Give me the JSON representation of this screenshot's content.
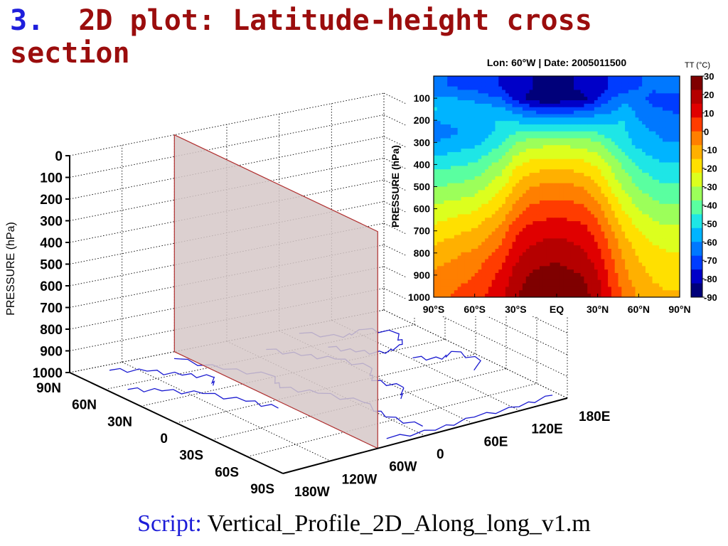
{
  "slide": {
    "number": "3.",
    "title": "2D plot: Latitude-height cross section",
    "script_label": "Script:",
    "script_name": "Vertical_Profile_2D_Along_long_v1.m"
  },
  "colors": {
    "title_number": "#1f1fdc",
    "title_text": "#9b0d0d",
    "coastline": "#1a1ad0",
    "plane_fill": "#d6c8c8",
    "plane_edge": "#b03030"
  },
  "chart_data": [
    {
      "type": "3d-surface-plane",
      "zlabel": "PRESSURE (hPa)",
      "z_ticks": [
        "0",
        "100",
        "200",
        "300",
        "400",
        "500",
        "600",
        "700",
        "800",
        "900",
        "1000"
      ],
      "lat_ticks": [
        "90N",
        "60N",
        "30N",
        "0",
        "30S",
        "60S",
        "90S"
      ],
      "lon_ticks": [
        "180W",
        "120W",
        "60W",
        "0",
        "60E",
        "120E",
        "180E"
      ],
      "plane": {
        "longitude": "60W",
        "pressure_range": [
          0,
          1000
        ]
      },
      "basemap": "world-coastlines",
      "grid": true
    },
    {
      "type": "heatmap",
      "title": "Lon: 60°W | Date: 2005011500",
      "ylabel": "PRESSURE (hPa)",
      "x_ticks": [
        "90°S",
        "60°S",
        "30°S",
        "EQ",
        "30°N",
        "60°N",
        "90°N"
      ],
      "y_ticks": [
        "100",
        "200",
        "300",
        "400",
        "500",
        "600",
        "700",
        "800",
        "900",
        "1000"
      ],
      "ylim": [
        1000,
        0
      ],
      "xlim": [
        -90,
        90
      ],
      "colorbar": {
        "title": "TT (°C)",
        "ticks": [
          "30",
          "20",
          "10",
          "0",
          "-10",
          "-20",
          "-30",
          "-40",
          "-50",
          "-60",
          "-70",
          "-80",
          "-90"
        ],
        "range": [
          -90,
          30
        ],
        "colors": [
          "#7f0000",
          "#b50000",
          "#e00000",
          "#ff3c00",
          "#ff7f00",
          "#ffb000",
          "#ffe000",
          "#dcff1e",
          "#9cff5a",
          "#5affa0",
          "#1ee6e6",
          "#00b4ff",
          "#0078ff",
          "#003cff",
          "#0000c8",
          "#00007a"
        ]
      },
      "levels": [
        {
          "p": 50,
          "lat": [
            -90,
            -60,
            -40,
            -30,
            -20,
            -10,
            0,
            10,
            20,
            30,
            40,
            50,
            60,
            70,
            80,
            90
          ],
          "t": [
            -66,
            -70,
            -76,
            -80,
            -82,
            -84,
            -84,
            -83,
            -80,
            -78,
            -74,
            -72,
            -68,
            -66,
            -64,
            -62
          ]
        },
        {
          "p": 100,
          "lat": [
            -90,
            -60,
            -40,
            -30,
            -20,
            -10,
            0,
            10,
            20,
            30,
            40,
            50,
            60,
            70,
            80,
            90
          ],
          "t": [
            -58,
            -62,
            -68,
            -78,
            -84,
            -88,
            -88,
            -86,
            -84,
            -76,
            -68,
            -62,
            -64,
            -70,
            -72,
            -74
          ]
        },
        {
          "p": 150,
          "lat": [
            -90,
            -60,
            -40,
            -30,
            -20,
            -10,
            0,
            10,
            20,
            30,
            40,
            50,
            60,
            70,
            80,
            90
          ],
          "t": [
            -52,
            -56,
            -58,
            -64,
            -70,
            -74,
            -74,
            -72,
            -70,
            -66,
            -62,
            -58,
            -62,
            -66,
            -68,
            -70
          ]
        },
        {
          "p": 200,
          "lat": [
            -90,
            -60,
            -40,
            -30,
            -20,
            -10,
            0,
            10,
            20,
            30,
            40,
            50,
            60,
            70,
            80,
            90
          ],
          "t": [
            -60,
            -55,
            -52,
            -54,
            -56,
            -58,
            -58,
            -57,
            -56,
            -55,
            -54,
            -52,
            -60,
            -62,
            -64,
            -64
          ]
        },
        {
          "p": 250,
          "lat": [
            -90,
            -60,
            -40,
            -30,
            -20,
            -10,
            0,
            10,
            20,
            30,
            40,
            50,
            60,
            70,
            80,
            90
          ],
          "t": [
            -64,
            -58,
            -50,
            -46,
            -44,
            -44,
            -44,
            -44,
            -44,
            -46,
            -50,
            -52,
            -58,
            -60,
            -62,
            -62
          ]
        },
        {
          "p": 300,
          "lat": [
            -90,
            -60,
            -40,
            -30,
            -20,
            -10,
            0,
            10,
            20,
            30,
            40,
            50,
            60,
            70,
            80,
            90
          ],
          "t": [
            -60,
            -55,
            -46,
            -38,
            -34,
            -33,
            -33,
            -33,
            -34,
            -37,
            -44,
            -50,
            -55,
            -58,
            -60,
            -60
          ]
        },
        {
          "p": 400,
          "lat": [
            -90,
            -60,
            -40,
            -30,
            -20,
            -10,
            0,
            10,
            20,
            30,
            40,
            50,
            60,
            70,
            80,
            90
          ],
          "t": [
            -48,
            -44,
            -34,
            -24,
            -20,
            -18,
            -18,
            -18,
            -20,
            -24,
            -32,
            -40,
            -46,
            -50,
            -52,
            -52
          ]
        },
        {
          "p": 500,
          "lat": [
            -90,
            -60,
            -40,
            -30,
            -20,
            -10,
            0,
            10,
            20,
            30,
            40,
            50,
            60,
            70,
            80,
            90
          ],
          "t": [
            -38,
            -34,
            -24,
            -14,
            -8,
            -6,
            -6,
            -6,
            -8,
            -14,
            -24,
            -32,
            -38,
            -42,
            -44,
            -44
          ]
        },
        {
          "p": 600,
          "lat": [
            -90,
            -60,
            -40,
            -30,
            -20,
            -10,
            0,
            10,
            20,
            30,
            40,
            50,
            60,
            70,
            80,
            90
          ],
          "t": [
            -28,
            -24,
            -14,
            -4,
            2,
            3,
            4,
            3,
            2,
            -4,
            -14,
            -24,
            -30,
            -34,
            -36,
            -36
          ]
        },
        {
          "p": 700,
          "lat": [
            -90,
            -60,
            -40,
            -30,
            -20,
            -10,
            0,
            10,
            20,
            30,
            40,
            50,
            60,
            70,
            80,
            90
          ],
          "t": [
            -20,
            -14,
            -4,
            6,
            10,
            12,
            13,
            12,
            10,
            4,
            -6,
            -16,
            -22,
            -26,
            -28,
            -28
          ]
        },
        {
          "p": 800,
          "lat": [
            -90,
            -60,
            -40,
            -30,
            -20,
            -10,
            0,
            10,
            20,
            30,
            40,
            50,
            60,
            70,
            80,
            90
          ],
          "t": [
            -12,
            -6,
            4,
            12,
            17,
            19,
            20,
            18,
            16,
            10,
            0,
            -10,
            -16,
            -20,
            -22,
            -22
          ]
        },
        {
          "p": 900,
          "lat": [
            -90,
            -60,
            -40,
            -30,
            -20,
            -10,
            0,
            10,
            20,
            30,
            40,
            50,
            60,
            70,
            80,
            90
          ],
          "t": [
            -6,
            0,
            10,
            18,
            23,
            25,
            26,
            24,
            22,
            16,
            4,
            -6,
            -12,
            -16,
            -18,
            -18
          ]
        },
        {
          "p": 1000,
          "lat": [
            -90,
            -60,
            -40,
            -30,
            -20,
            -10,
            0,
            10,
            20,
            30,
            40,
            50,
            60,
            70,
            80,
            90
          ],
          "t": [
            -2,
            4,
            14,
            22,
            26,
            28,
            29,
            27,
            25,
            19,
            8,
            -2,
            -8,
            -12,
            -14,
            -14
          ]
        }
      ]
    }
  ]
}
